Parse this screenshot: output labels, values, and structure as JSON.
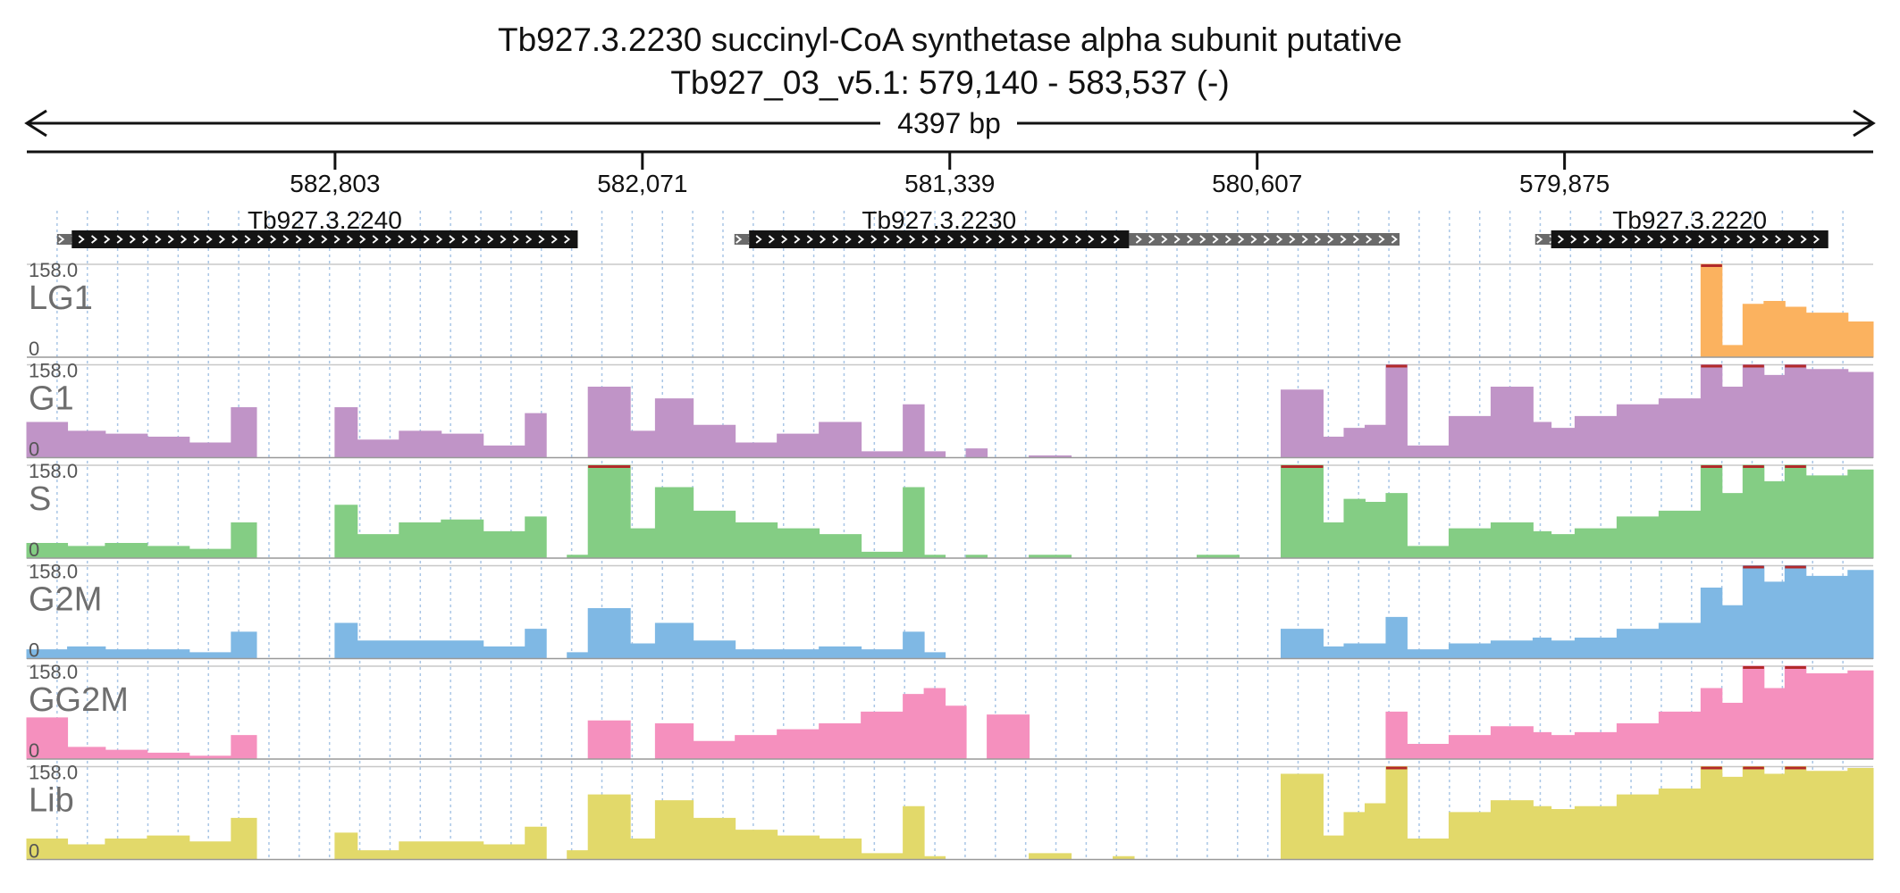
{
  "title": {
    "line1": "Tb927.3.2230  succinyl-CoA synthetase alpha subunit  putative",
    "line2": "Tb927_03_v5.1: 579,140 - 583,537 (-)"
  },
  "span_label": "4397 bp",
  "region": {
    "start": 583537,
    "end": 579140,
    "strand": "-"
  },
  "axis_ticks": [
    582803,
    582071,
    581339,
    580607,
    579875
  ],
  "axis_tick_labels": [
    "582,803",
    "582,071",
    "581,339",
    "580,607",
    "579,875"
  ],
  "genes": [
    {
      "name": "Tb927.3.2240",
      "cds": [
        583430,
        582225
      ],
      "utr": [
        583465,
        583430
      ]
    },
    {
      "name": "Tb927.3.2230",
      "cds": [
        581817,
        580912
      ],
      "utr": [
        581852,
        581817
      ],
      "utr3": [
        580912,
        580268
      ]
    },
    {
      "name": "Tb927.3.2220",
      "cds": [
        579907,
        579247
      ],
      "utr": [
        579945,
        579907
      ]
    }
  ],
  "chart_data": {
    "type": "area",
    "x_unit": "bp",
    "x": [
      583537,
      583440,
      583350,
      583250,
      583150,
      583050,
      582990,
      582950,
      582900,
      582803,
      582750,
      582650,
      582550,
      582450,
      582350,
      582300,
      582250,
      582200,
      582100,
      582040,
      581950,
      581850,
      581750,
      581650,
      581550,
      581450,
      581400,
      581350,
      581300,
      581250,
      581150,
      581050,
      580950,
      580900,
      580850,
      580750,
      580650,
      580550,
      580450,
      580400,
      580350,
      580300,
      580250,
      580150,
      580050,
      579950,
      579907,
      579850,
      579750,
      579650,
      579550,
      579500,
      579450,
      579400,
      579350,
      579300,
      579200,
      579140
    ],
    "ylim": [
      0,
      158.0
    ],
    "y_max_label": "158.0",
    "y_min_label": "0",
    "series": [
      {
        "name": "LG1",
        "color": "#fbb25f",
        "values": [
          0,
          0,
          0,
          0,
          0,
          0,
          0,
          0,
          0,
          0,
          0,
          0,
          0,
          0,
          0,
          0,
          0,
          0,
          0,
          0,
          0,
          0,
          0,
          0,
          0,
          0,
          0,
          0,
          0,
          0,
          0,
          0,
          0,
          0,
          0,
          0,
          0,
          0,
          0,
          0,
          0,
          0,
          0,
          0,
          0,
          0,
          0,
          0,
          0,
          0,
          158,
          20,
          90,
          95,
          85,
          75,
          60,
          55
        ]
      },
      {
        "name": "G1",
        "color": "#c094c7",
        "values": [
          60,
          45,
          40,
          35,
          25,
          85,
          0,
          0,
          0,
          85,
          30,
          45,
          40,
          20,
          75,
          0,
          0,
          120,
          45,
          100,
          55,
          25,
          40,
          60,
          10,
          90,
          10,
          0,
          15,
          0,
          3,
          0,
          0,
          0,
          0,
          0,
          0,
          115,
          35,
          50,
          55,
          158,
          20,
          70,
          120,
          60,
          50,
          70,
          90,
          100,
          158,
          120,
          158,
          140,
          158,
          150,
          145,
          140
        ]
      },
      {
        "name": "S",
        "color": "#84cd84",
        "values": [
          25,
          20,
          25,
          20,
          15,
          60,
          0,
          0,
          0,
          90,
          40,
          60,
          65,
          45,
          70,
          0,
          5,
          158,
          50,
          120,
          80,
          60,
          50,
          40,
          10,
          120,
          5,
          0,
          5,
          0,
          5,
          0,
          0,
          0,
          0,
          5,
          0,
          158,
          60,
          100,
          95,
          110,
          20,
          50,
          60,
          45,
          40,
          50,
          70,
          80,
          158,
          110,
          158,
          130,
          158,
          140,
          150,
          150
        ]
      },
      {
        "name": "G2M",
        "color": "#7fb8e4",
        "values": [
          15,
          20,
          15,
          15,
          10,
          45,
          0,
          0,
          0,
          60,
          30,
          30,
          30,
          20,
          50,
          0,
          10,
          85,
          25,
          60,
          30,
          15,
          15,
          20,
          15,
          45,
          10,
          0,
          0,
          0,
          0,
          0,
          0,
          0,
          0,
          0,
          0,
          50,
          20,
          25,
          25,
          70,
          15,
          25,
          30,
          35,
          30,
          35,
          50,
          60,
          120,
          90,
          158,
          130,
          158,
          140,
          150,
          120
        ]
      },
      {
        "name": "GG2M",
        "color": "#f590be",
        "values": [
          70,
          20,
          15,
          10,
          5,
          40,
          0,
          0,
          0,
          0,
          0,
          0,
          0,
          0,
          0,
          0,
          0,
          65,
          0,
          60,
          30,
          40,
          50,
          60,
          80,
          110,
          120,
          90,
          0,
          75,
          0,
          0,
          0,
          0,
          0,
          0,
          0,
          0,
          0,
          0,
          0,
          80,
          25,
          40,
          55,
          45,
          40,
          45,
          60,
          80,
          120,
          95,
          158,
          120,
          158,
          145,
          150,
          130
        ]
      },
      {
        "name": "Lib",
        "color": "#e2d96a",
        "values": [
          35,
          25,
          35,
          40,
          30,
          70,
          0,
          0,
          0,
          45,
          15,
          30,
          30,
          25,
          55,
          0,
          15,
          110,
          35,
          100,
          70,
          50,
          40,
          35,
          10,
          90,
          5,
          0,
          0,
          0,
          10,
          0,
          5,
          0,
          0,
          0,
          0,
          145,
          40,
          80,
          95,
          158,
          35,
          80,
          100,
          90,
          85,
          90,
          110,
          120,
          158,
          140,
          158,
          145,
          158,
          150,
          155,
          145
        ]
      }
    ]
  }
}
